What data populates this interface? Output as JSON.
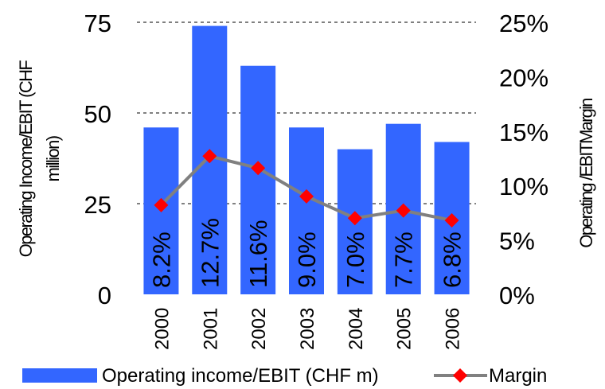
{
  "chart_data": {
    "type": "bar",
    "categories": [
      "2000",
      "2001",
      "2002",
      "2003",
      "2004",
      "2005",
      "2006"
    ],
    "series": [
      {
        "name": "Operating income/EBIT (CHF m)",
        "type": "bar",
        "axis": "left",
        "values": [
          46,
          74,
          63,
          46,
          40,
          47,
          42
        ],
        "color": "#3366ff"
      },
      {
        "name": "Margin",
        "type": "line",
        "axis": "right",
        "values": [
          8.2,
          12.7,
          11.6,
          9.0,
          7.0,
          7.7,
          6.8
        ],
        "labels": [
          "8.2%",
          "12.7%",
          "11.6%",
          "9.0%",
          "7.0%",
          "7.7%",
          "6.8%"
        ],
        "line_color": "#808080",
        "marker_color": "#ff0000",
        "marker": "diamond"
      }
    ],
    "y_left": {
      "label": "Operating Income/EBIT (CHF million)",
      "range": [
        0,
        75
      ],
      "ticks": [
        "0",
        "25",
        "50",
        "75"
      ]
    },
    "y_right": {
      "label": "Operating /EBITMargin",
      "range": [
        0,
        25
      ],
      "ticks": [
        "0%",
        "5%",
        "10%",
        "15%",
        "20%",
        "25%"
      ]
    },
    "grid": "dashed horizontal at left-axis ticks",
    "legend_position": "bottom"
  }
}
